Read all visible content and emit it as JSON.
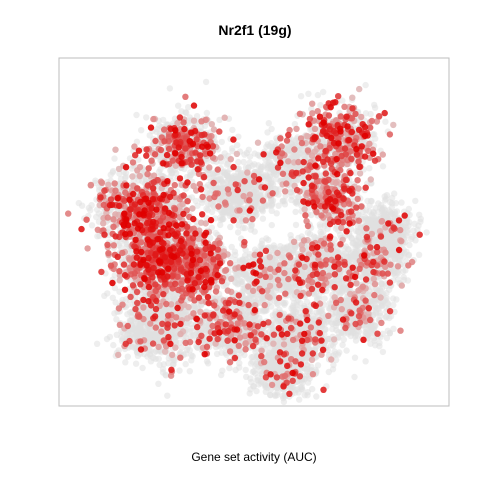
{
  "chart_data": {
    "type": "scatter",
    "title": "Nr2f1 (19g)",
    "caption": "Gene set activity (AUC)",
    "xlabel": "",
    "ylabel": "",
    "axes_visible": false,
    "grid": false,
    "legend": "none",
    "colors": {
      "low": "#e0e0e0",
      "high": "#e00000",
      "frame": "#bdbdbd"
    },
    "points_source": "t-SNE embedding of cells, colored by regulon AUC; thousands of points, individual coordinates not labeled",
    "regions": [
      {
        "x": -22,
        "y": 30,
        "spread": 9,
        "weight": 8,
        "activity": 0.35
      },
      {
        "x": 25,
        "y": 32,
        "spread": 10,
        "weight": 8,
        "activity": 0.45
      },
      {
        "x": 10,
        "y": 24,
        "spread": 9,
        "weight": 5,
        "activity": 0.15
      },
      {
        "x": -5,
        "y": 14,
        "spread": 10,
        "weight": 8,
        "activity": 0.08
      },
      {
        "x": 22,
        "y": 12,
        "spread": 8,
        "weight": 6,
        "activity": 0.4
      },
      {
        "x": 38,
        "y": 2,
        "spread": 8,
        "weight": 5,
        "activity": 0.05
      },
      {
        "x": -35,
        "y": 8,
        "spread": 12,
        "weight": 14,
        "activity": 0.35
      },
      {
        "x": -28,
        "y": -8,
        "spread": 12,
        "weight": 14,
        "activity": 0.45
      },
      {
        "x": -18,
        "y": -10,
        "spread": 9,
        "weight": 6,
        "activity": 0.6
      },
      {
        "x": 2,
        "y": -14,
        "spread": 9,
        "weight": 6,
        "activity": 0.1
      },
      {
        "x": 18,
        "y": -10,
        "spread": 10,
        "weight": 8,
        "activity": 0.2
      },
      {
        "x": 35,
        "y": -8,
        "spread": 9,
        "weight": 6,
        "activity": 0.15
      },
      {
        "x": -30,
        "y": -30,
        "spread": 11,
        "weight": 10,
        "activity": 0.1
      },
      {
        "x": -8,
        "y": -30,
        "spread": 10,
        "weight": 9,
        "activity": 0.2
      },
      {
        "x": 12,
        "y": -34,
        "spread": 10,
        "weight": 8,
        "activity": 0.1
      },
      {
        "x": 30,
        "y": -26,
        "spread": 9,
        "weight": 6,
        "activity": 0.15
      },
      {
        "x": 8,
        "y": -46,
        "spread": 8,
        "weight": 5,
        "activity": 0.1
      }
    ]
  }
}
